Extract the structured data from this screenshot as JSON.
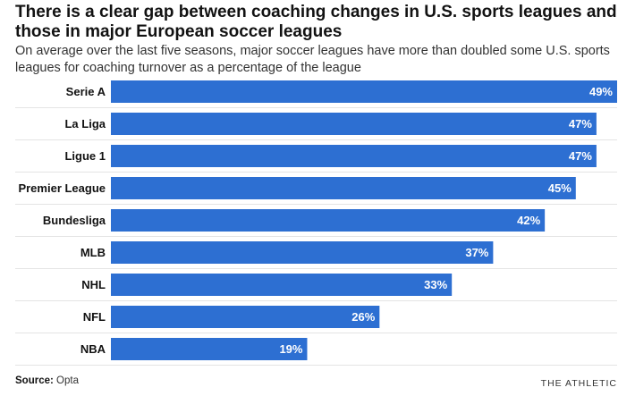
{
  "header": {
    "title": "There is a clear gap between coaching changes in U.S. sports leagues and those in major European soccer leagues",
    "subtitle": "On average over the last five seasons, major soccer leagues have more than doubled some U.S. sports leagues for coaching turnover as a percentage of the league"
  },
  "footer": {
    "source_label": "Source:",
    "source_value": "Opta",
    "brand": "THE ATHLETIC"
  },
  "colors": {
    "bar": "#2d6fd2",
    "divider": "#e4e4e4"
  },
  "chart_data": {
    "type": "bar",
    "orientation": "horizontal",
    "categories": [
      "Serie A",
      "La Liga",
      "Ligue 1",
      "Premier League",
      "Bundesliga",
      "MLB",
      "NHL",
      "NFL",
      "NBA"
    ],
    "values": [
      49,
      47,
      47,
      45,
      42,
      37,
      33,
      26,
      19
    ],
    "value_labels": [
      "49%",
      "47%",
      "47%",
      "45%",
      "42%",
      "37%",
      "33%",
      "26%",
      "19%"
    ],
    "title": "There is a clear gap between coaching changes in U.S. sports leagues and those in major European soccer leagues",
    "xlabel": "",
    "ylabel": "",
    "xlim": [
      0,
      49
    ],
    "grid": false
  }
}
